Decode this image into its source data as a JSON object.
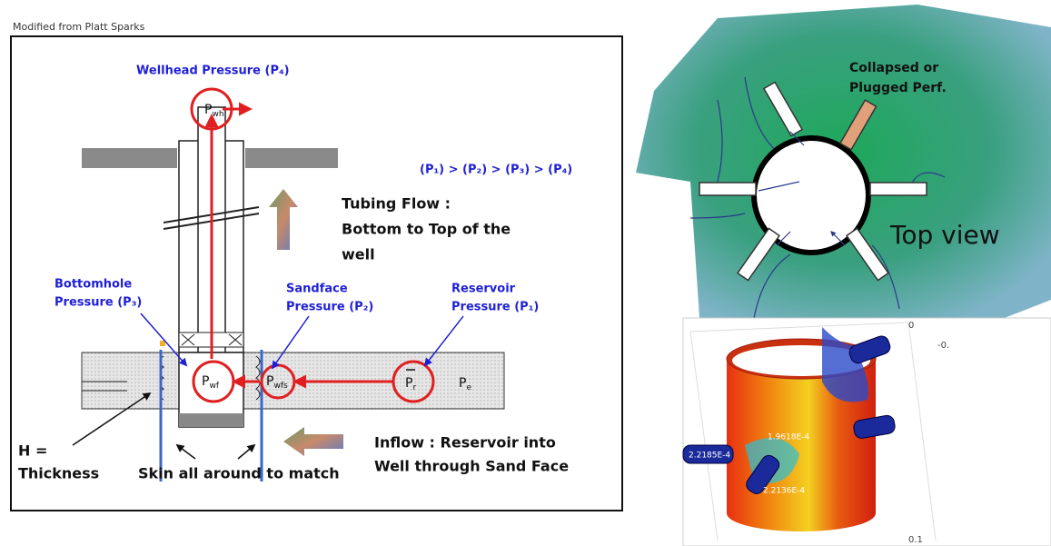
{
  "credit": "Modified from Platt Sparks",
  "labels": {
    "wellhead": "Wellhead Pressure (P₄)",
    "order": "(P₁) > (P₂) > (P₃) > (P₄)",
    "bottomhole": [
      "Bottomhole",
      "Pressure (P₃)"
    ],
    "sandface": [
      "Sandface",
      "Pressure (P₂)"
    ],
    "reservoir": [
      "Reservoir",
      "Pressure (P₁)"
    ]
  },
  "symbols": {
    "wellhead": {
      "main": "P",
      "sub": "wh"
    },
    "bottomhole": {
      "main": "P",
      "sub": "wf"
    },
    "sandface": {
      "main": "P",
      "sub": "wfs"
    },
    "reservoir": {
      "main": "P",
      "sub": "r"
    },
    "external": {
      "main": "P",
      "sub": "e"
    }
  },
  "notes": {
    "tubing": [
      "Tubing Flow :",
      "Bottom to Top of the",
      "well"
    ],
    "inflow": [
      "Inflow : Reservoir into",
      "Well through Sand Face"
    ],
    "thickness": [
      "H =",
      "Thickness"
    ],
    "skin": "Skin all around  to match"
  },
  "top_view": {
    "collapsed": [
      "Collapsed or",
      "Plugged Perf."
    ],
    "label": "Top view"
  },
  "model": {
    "axis_labels": [
      "0",
      "-0.",
      "0.1"
    ],
    "value_labels": [
      "2.2185E-4",
      "1.9618E-4",
      "2.2136E-4"
    ]
  }
}
